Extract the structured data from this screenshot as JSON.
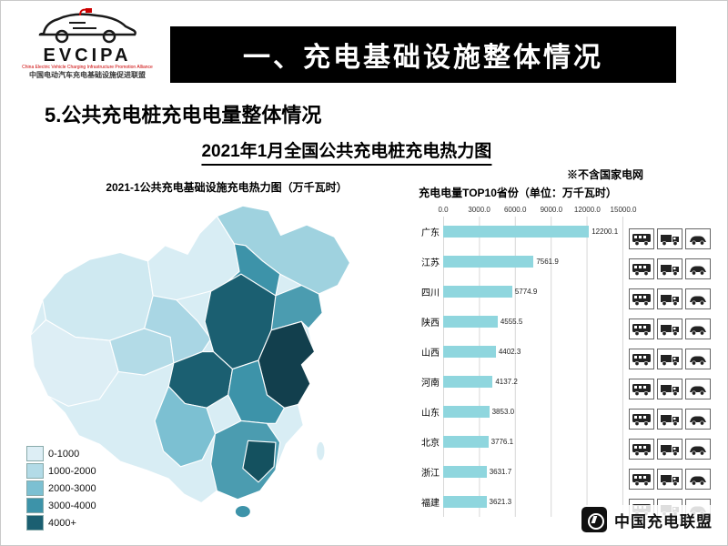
{
  "logo": {
    "acronym": "EVCIPA",
    "tagline_en": "China Electric Vehicle Charging Infrastructure Promotion Alliance",
    "tagline_cn": "中国电动汽车充电基础设施促进联盟"
  },
  "banner": {
    "title": "一、充电基础设施整体情况"
  },
  "section": {
    "title": "5.公共充电桩充电电量整体情况",
    "subtitle": "2021年1月全国公共充电桩充电热力图",
    "note": "※不含国家电网"
  },
  "map": {
    "title": "2021-1公共充电基础设施充电热力图（万千瓦时）",
    "legend": [
      {
        "label": "0-1000",
        "color": "#ddeef5"
      },
      {
        "label": "1000-2000",
        "color": "#b3dbe7"
      },
      {
        "label": "2000-3000",
        "color": "#7cc0d2"
      },
      {
        "label": "3000-4000",
        "color": "#3d93a9"
      },
      {
        "label": "4000+",
        "color": "#1b5f71"
      }
    ]
  },
  "chart_data": {
    "type": "bar",
    "orientation": "horizontal",
    "title": "充电电量TOP10省份（单位：万千瓦时）",
    "categories": [
      "广东",
      "江苏",
      "四川",
      "陕西",
      "山西",
      "河南",
      "山东",
      "北京",
      "浙江",
      "福建"
    ],
    "values": [
      12200.1,
      7561.9,
      5774.9,
      4555.5,
      4402.3,
      4137.2,
      3853.0,
      3776.1,
      3631.7,
      3621.3
    ],
    "value_labels": [
      "12200.1",
      "7561.9",
      "5774.9",
      "4555.5",
      "4402.3",
      "4137.2",
      "3853.0",
      "3776.1",
      "3631.7",
      "3621.3"
    ],
    "xlim": [
      0,
      15000
    ],
    "xticks": [
      "0.0",
      "3000.0",
      "6000.0",
      "9000.0",
      "12000.0",
      "15000.0"
    ],
    "bar_color": "#8fd6de",
    "grid": true,
    "legend_position": "none"
  },
  "icons": {
    "vehicle_icons": [
      "bus",
      "truck",
      "car"
    ],
    "rows": 10
  },
  "footer": {
    "brand": "中国充电联盟"
  }
}
